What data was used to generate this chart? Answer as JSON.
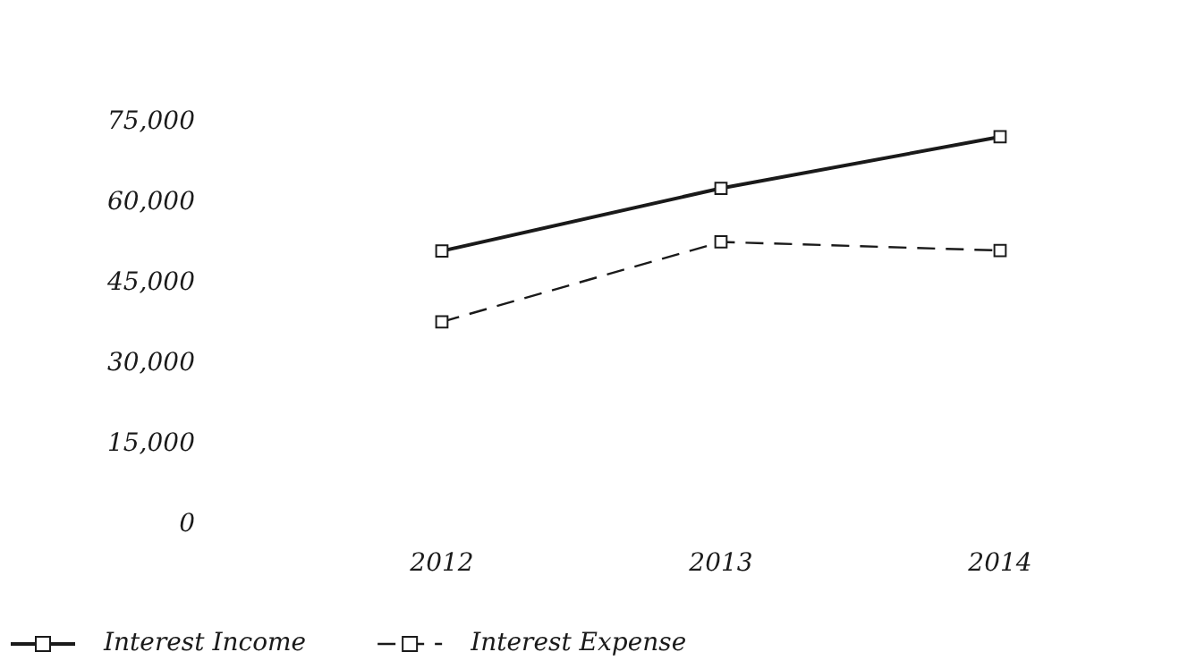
{
  "chart_data": {
    "type": "line",
    "categories": [
      "2012",
      "2013",
      "2014"
    ],
    "series": [
      {
        "name": "Interest Income",
        "color": "#1a1a1a",
        "values": [
          51000,
          62700,
          72300
        ],
        "line_style": "solid"
      },
      {
        "name": "Interest Expense",
        "color": "#1a1a1a",
        "values": [
          37800,
          52700,
          51100
        ],
        "line_style": "dashed"
      }
    ],
    "ylim": [
      0,
      75000
    ],
    "yticks": [
      {
        "value": 0,
        "label": "0"
      },
      {
        "value": 15000,
        "label": "15,000"
      },
      {
        "value": 30000,
        "label": "30,000"
      },
      {
        "value": 45000,
        "label": "45,000"
      },
      {
        "value": 60000,
        "label": "60,000"
      },
      {
        "value": 75000,
        "label": "75,000"
      }
    ],
    "grid": false,
    "legend": "bottom left",
    "marker": "square"
  }
}
